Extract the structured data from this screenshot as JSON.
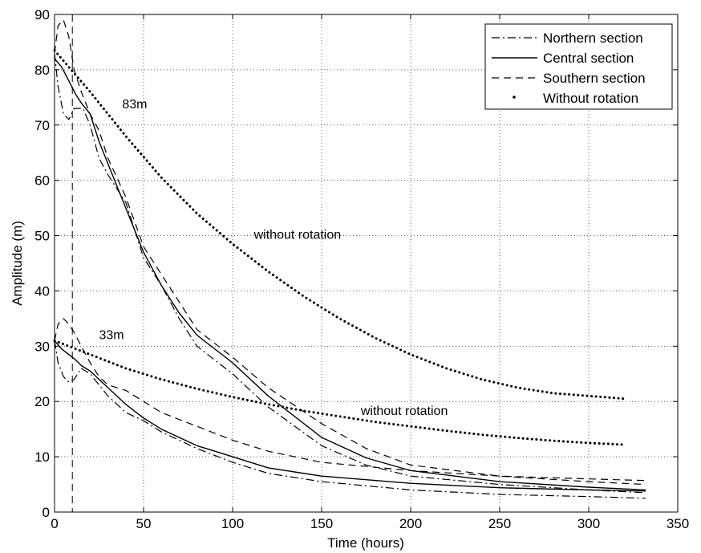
{
  "chart_data": {
    "type": "line",
    "xlabel": "Time (hours)",
    "ylabel": "Amplitude (m)",
    "xlim": [
      0,
      350
    ],
    "ylim": [
      0,
      90
    ],
    "xticks": [
      0,
      50,
      100,
      150,
      200,
      250,
      300,
      350
    ],
    "yticks": [
      0,
      10,
      20,
      30,
      40,
      50,
      60,
      70,
      80,
      90
    ],
    "grid": true,
    "legend_position": "top-right",
    "reference_line_x": 10,
    "legend": [
      {
        "label": "Northern section",
        "style": "dashdot"
      },
      {
        "label": "Central section",
        "style": "solid"
      },
      {
        "label": "Southern section",
        "style": "dashed"
      },
      {
        "label": "Without rotation",
        "style": "dotted"
      }
    ],
    "annotations": [
      {
        "text": "83m",
        "x": 38,
        "y": 73
      },
      {
        "text": "without rotation",
        "x": 112,
        "y": 49.4
      },
      {
        "text": "33m",
        "x": 25,
        "y": 31.3
      },
      {
        "text": "without rotation",
        "x": 172,
        "y": 17.6
      }
    ],
    "series": [
      {
        "group": "83m",
        "style": "solid",
        "points": [
          [
            0,
            82
          ],
          [
            4,
            80.5
          ],
          [
            8,
            78
          ],
          [
            12,
            75.5
          ],
          [
            15,
            74
          ],
          [
            20,
            72
          ],
          [
            25,
            67
          ],
          [
            30,
            63
          ],
          [
            40,
            55
          ],
          [
            50,
            47
          ],
          [
            60,
            41
          ],
          [
            70,
            36
          ],
          [
            80,
            32
          ],
          [
            100,
            27
          ],
          [
            120,
            21
          ],
          [
            150,
            13.5
          ],
          [
            175,
            9.8
          ],
          [
            200,
            7.5
          ],
          [
            250,
            5.5
          ],
          [
            300,
            4.5
          ],
          [
            332,
            4
          ]
        ]
      },
      {
        "group": "83m",
        "style": "dashdot",
        "points": [
          [
            0,
            83
          ],
          [
            2,
            77
          ],
          [
            5,
            72
          ],
          [
            8,
            71
          ],
          [
            11,
            73
          ],
          [
            16,
            73
          ],
          [
            20,
            70
          ],
          [
            25,
            64
          ],
          [
            30,
            61
          ],
          [
            40,
            56
          ],
          [
            50,
            46
          ],
          [
            60,
            41
          ],
          [
            70,
            35
          ],
          [
            80,
            30
          ],
          [
            100,
            25
          ],
          [
            120,
            19
          ],
          [
            150,
            12
          ],
          [
            175,
            8.5
          ],
          [
            200,
            6.5
          ],
          [
            250,
            5
          ],
          [
            300,
            4
          ],
          [
            332,
            3.5
          ]
        ]
      },
      {
        "group": "83m",
        "style": "dashed",
        "points": [
          [
            0,
            83
          ],
          [
            2,
            88
          ],
          [
            5,
            89
          ],
          [
            8,
            86
          ],
          [
            11,
            80
          ],
          [
            15,
            76
          ],
          [
            20,
            72
          ],
          [
            25,
            69
          ],
          [
            30,
            64
          ],
          [
            40,
            57
          ],
          [
            50,
            48
          ],
          [
            60,
            43
          ],
          [
            70,
            38
          ],
          [
            80,
            33
          ],
          [
            100,
            28
          ],
          [
            120,
            22.5
          ],
          [
            150,
            16
          ],
          [
            175,
            11.5
          ],
          [
            200,
            8.5
          ],
          [
            250,
            6.5
          ],
          [
            300,
            5.5
          ],
          [
            332,
            5
          ]
        ]
      },
      {
        "group": "33m",
        "style": "solid",
        "points": [
          [
            0,
            31
          ],
          [
            4,
            29.5
          ],
          [
            8,
            28.5
          ],
          [
            12,
            27.5
          ],
          [
            15,
            26.5
          ],
          [
            20,
            25.5
          ],
          [
            25,
            24
          ],
          [
            30,
            22.5
          ],
          [
            40,
            19.5
          ],
          [
            50,
            17
          ],
          [
            60,
            15
          ],
          [
            80,
            12
          ],
          [
            100,
            10
          ],
          [
            120,
            8
          ],
          [
            150,
            6.5
          ],
          [
            200,
            5.2
          ],
          [
            250,
            4.4
          ],
          [
            300,
            4
          ],
          [
            332,
            3.8
          ]
        ]
      },
      {
        "group": "33m",
        "style": "dashdot",
        "points": [
          [
            0,
            31
          ],
          [
            2,
            27
          ],
          [
            5,
            24.5
          ],
          [
            8,
            23.5
          ],
          [
            11,
            24
          ],
          [
            15,
            26
          ],
          [
            20,
            25
          ],
          [
            25,
            23
          ],
          [
            30,
            21
          ],
          [
            40,
            18
          ],
          [
            50,
            16.5
          ],
          [
            60,
            14.5
          ],
          [
            80,
            11.5
          ],
          [
            100,
            9
          ],
          [
            120,
            7
          ],
          [
            150,
            5.5
          ],
          [
            200,
            4
          ],
          [
            250,
            3.2
          ],
          [
            300,
            2.8
          ],
          [
            332,
            2.5
          ]
        ]
      },
      {
        "group": "33m",
        "style": "dashed",
        "points": [
          [
            0,
            31
          ],
          [
            2,
            34
          ],
          [
            5,
            35
          ],
          [
            8,
            34
          ],
          [
            11,
            32.5
          ],
          [
            15,
            30
          ],
          [
            20,
            27
          ],
          [
            25,
            24.5
          ],
          [
            30,
            23
          ],
          [
            40,
            22
          ],
          [
            50,
            20
          ],
          [
            60,
            18
          ],
          [
            80,
            15.5
          ],
          [
            100,
            13
          ],
          [
            120,
            11
          ],
          [
            150,
            9
          ],
          [
            200,
            7.5
          ],
          [
            250,
            6.5
          ],
          [
            300,
            6
          ],
          [
            332,
            5.7
          ]
        ]
      },
      {
        "group": "83m",
        "style": "dotted",
        "points": [
          [
            0,
            83.5
          ],
          [
            20,
            76
          ],
          [
            40,
            68
          ],
          [
            60,
            60.5
          ],
          [
            80,
            54
          ],
          [
            100,
            48.5
          ],
          [
            120,
            43.5
          ],
          [
            140,
            39
          ],
          [
            160,
            35
          ],
          [
            180,
            31.5
          ],
          [
            200,
            28.5
          ],
          [
            220,
            26
          ],
          [
            240,
            24
          ],
          [
            260,
            22.5
          ],
          [
            280,
            21.5
          ],
          [
            300,
            21
          ],
          [
            320,
            20.5
          ]
        ]
      },
      {
        "group": "33m",
        "style": "dotted",
        "points": [
          [
            0,
            31
          ],
          [
            20,
            28.5
          ],
          [
            40,
            26
          ],
          [
            60,
            24
          ],
          [
            80,
            22.3
          ],
          [
            100,
            20.8
          ],
          [
            120,
            19.5
          ],
          [
            140,
            18.3
          ],
          [
            160,
            17.3
          ],
          [
            180,
            16.3
          ],
          [
            200,
            15.5
          ],
          [
            220,
            14.7
          ],
          [
            240,
            14
          ],
          [
            260,
            13.4
          ],
          [
            280,
            12.9
          ],
          [
            300,
            12.5
          ],
          [
            320,
            12.2
          ]
        ]
      }
    ]
  }
}
